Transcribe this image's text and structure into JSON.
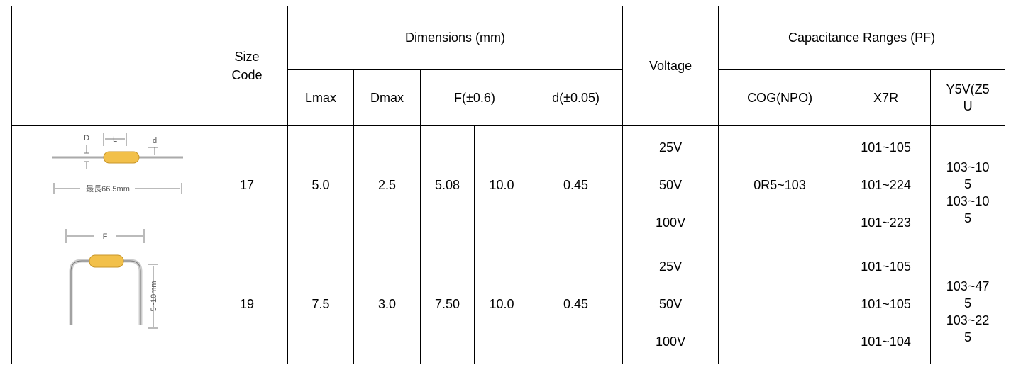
{
  "diagram": {
    "top_labels": [
      "D",
      "L",
      "d"
    ],
    "length_label": "最長66.5mm",
    "bottom_label": "F",
    "lead_label": "5~10mm"
  },
  "header": {
    "size_code": "Size Code",
    "dimensions": "Dimensions (mm)",
    "voltage": "Voltage",
    "capacitance": "Capacitance Ranges (PF)",
    "sub": [
      "Lmax",
      "Dmax",
      "F(±0.6)",
      "d(±0.05)",
      "COG(NPO)",
      "X7R",
      "Y5V(Z5U"
    ]
  },
  "rows": [
    {
      "size": "17",
      "lmax": "5.0",
      "dmax": "2.5",
      "f1": "5.08",
      "f2": "10.0",
      "d": "0.45",
      "voltages": [
        "25V",
        "50V",
        "100V"
      ],
      "cog": "0R5~103",
      "x7r": [
        "101~105",
        "101~224",
        "101~223"
      ],
      "y5v": [
        "103~105",
        "103~105"
      ]
    },
    {
      "size": "19",
      "lmax": "7.5",
      "dmax": "3.0",
      "f1": "7.50",
      "f2": "10.0",
      "d": "0.45",
      "voltages": [
        "25V",
        "50V",
        "100V"
      ],
      "x7r": [
        "101~105",
        "101~105",
        "101~104"
      ],
      "y5v": [
        "103~475",
        "103~225"
      ]
    }
  ]
}
